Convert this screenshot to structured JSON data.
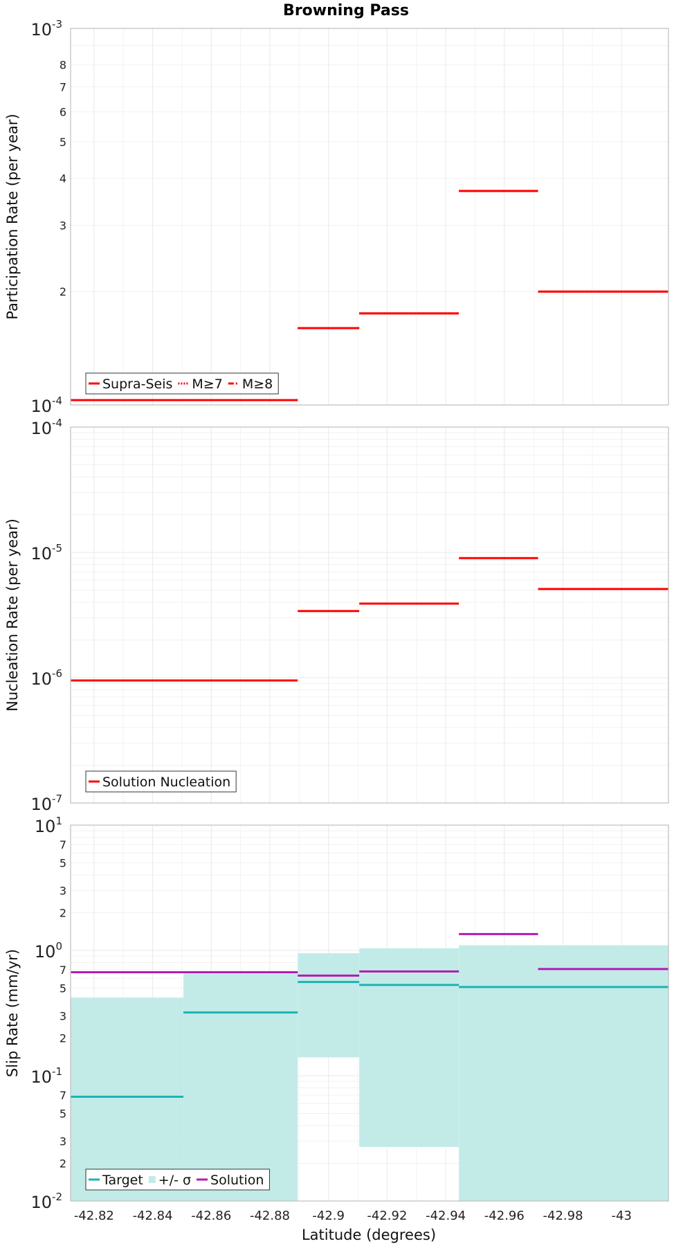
{
  "colors": {
    "red": "#ff0000",
    "teal": "#1ab3b3",
    "band": "#c2ebe8",
    "magenta": "#b31ab3",
    "grid": "#e8e8e8",
    "frame": "#bdbdbd"
  },
  "chart_data": {
    "type": "line",
    "title": "Browning Pass",
    "xlabel": "Latitude (degrees)",
    "xlim": [
      -42.812,
      -43.016
    ],
    "xticks": [
      -42.82,
      -42.84,
      -42.86,
      -42.88,
      -42.9,
      -42.92,
      -42.94,
      -42.96,
      -42.98,
      -43
    ],
    "xtick_labels": [
      "-42.82",
      "-42.84",
      "-42.86",
      "-42.88",
      "-42.9",
      "-42.92",
      "-42.94",
      "-42.96",
      "-42.98",
      "-43"
    ],
    "panels": [
      {
        "id": "participation",
        "ylabel": "Participation Rate (per year)",
        "yscale": "log",
        "ylim": [
          0.0001,
          0.001
        ],
        "major_ticks": [
          {
            "value": 0.0001,
            "base": "10",
            "exp": "-4"
          },
          {
            "value": 0.001,
            "base": "10",
            "exp": "-3"
          }
        ],
        "minor_ticks": [
          {
            "value": 0.0002,
            "label": "2"
          },
          {
            "value": 0.0003,
            "label": "3"
          },
          {
            "value": 0.0004,
            "label": "4"
          },
          {
            "value": 0.0005,
            "label": "5"
          },
          {
            "value": 0.0006,
            "label": "6"
          },
          {
            "value": 0.0007,
            "label": "7"
          },
          {
            "value": 0.0008,
            "label": "8"
          }
        ],
        "legend": {
          "position": "bottom-left",
          "entries": [
            {
              "name": "Supra-Seis",
              "style": "solid",
              "color": "#ff0000"
            },
            {
              "name": "M≥7",
              "style": "dotted",
              "color": "#ff0000"
            },
            {
              "name": "M≥8",
              "style": "dashdot",
              "color": "#ff0000"
            }
          ]
        },
        "series": [
          {
            "name": "Supra-Seis",
            "style": "solid",
            "color": "#ff0000",
            "segments": [
              {
                "x": [
                  -42.812,
                  -42.8505
                ],
                "y": 0.000103
              },
              {
                "x": [
                  -42.8505,
                  -42.8895
                ],
                "y": 0.000103
              },
              {
                "x": [
                  -42.8895,
                  -42.9105
                ],
                "y": 0.00016
              },
              {
                "x": [
                  -42.9105,
                  -42.9445
                ],
                "y": 0.000175
              },
              {
                "x": [
                  -42.9445,
                  -42.9715
                ],
                "y": 0.00037
              },
              {
                "x": [
                  -42.9715,
                  -43.016
                ],
                "y": 0.0002
              }
            ]
          },
          {
            "name": "M≥7",
            "style": "dotted",
            "color": "#ff0000",
            "segments": [
              {
                "x": [
                  -42.812,
                  -42.8505
                ],
                "y": 0.000103
              },
              {
                "x": [
                  -42.8505,
                  -42.8895
                ],
                "y": 0.000103
              },
              {
                "x": [
                  -42.8895,
                  -42.9105
                ],
                "y": 0.00016
              },
              {
                "x": [
                  -42.9105,
                  -42.9445
                ],
                "y": 0.000175
              },
              {
                "x": [
                  -42.9445,
                  -42.9715
                ],
                "y": 0.00037
              },
              {
                "x": [
                  -42.9715,
                  -43.016
                ],
                "y": 0.0002
              }
            ]
          }
        ]
      },
      {
        "id": "nucleation",
        "ylabel": "Nucleation Rate (per year)",
        "yscale": "log",
        "ylim": [
          1e-07,
          0.0001
        ],
        "major_ticks": [
          {
            "value": 1e-07,
            "base": "10",
            "exp": "-7"
          },
          {
            "value": 1e-06,
            "base": "10",
            "exp": "-6"
          },
          {
            "value": 1e-05,
            "base": "10",
            "exp": "-5"
          },
          {
            "value": 0.0001,
            "base": "10",
            "exp": "-4"
          }
        ],
        "minor_ticks": [],
        "legend": {
          "position": "bottom-left",
          "entries": [
            {
              "name": "Solution Nucleation",
              "style": "solid",
              "color": "#ff0000"
            }
          ]
        },
        "series": [
          {
            "name": "Solution Nucleation",
            "style": "solid",
            "color": "#ff0000",
            "segments": [
              {
                "x": [
                  -42.812,
                  -42.8505
                ],
                "y": 9.5e-07
              },
              {
                "x": [
                  -42.8505,
                  -42.8895
                ],
                "y": 9.5e-07
              },
              {
                "x": [
                  -42.8895,
                  -42.9105
                ],
                "y": 3.4e-06
              },
              {
                "x": [
                  -42.9105,
                  -42.9445
                ],
                "y": 3.9e-06
              },
              {
                "x": [
                  -42.9445,
                  -42.9715
                ],
                "y": 9e-06
              },
              {
                "x": [
                  -42.9715,
                  -43.016
                ],
                "y": 5.1e-06
              }
            ]
          }
        ]
      },
      {
        "id": "slip",
        "ylabel": "Slip Rate (mm/yr)",
        "yscale": "log",
        "ylim": [
          0.01,
          10
        ],
        "major_ticks": [
          {
            "value": 0.01,
            "base": "10",
            "exp": "-2"
          },
          {
            "value": 0.1,
            "base": "10",
            "exp": "-1"
          },
          {
            "value": 1,
            "base": "10",
            "exp": "0"
          },
          {
            "value": 10,
            "base": "10",
            "exp": "1"
          }
        ],
        "minor_ticks": [
          {
            "value": 0.02,
            "label": "2"
          },
          {
            "value": 0.03,
            "label": "3"
          },
          {
            "value": 0.05,
            "label": "5"
          },
          {
            "value": 0.07,
            "label": "7"
          },
          {
            "value": 0.2,
            "label": "2"
          },
          {
            "value": 0.3,
            "label": "3"
          },
          {
            "value": 0.5,
            "label": "5"
          },
          {
            "value": 0.7,
            "label": "7"
          },
          {
            "value": 2,
            "label": "2"
          },
          {
            "value": 3,
            "label": "3"
          },
          {
            "value": 5,
            "label": "5"
          },
          {
            "value": 7,
            "label": "7"
          }
        ],
        "legend": {
          "position": "bottom-left",
          "entries": [
            {
              "name": "Target",
              "style": "solid",
              "color": "#1ab3b3"
            },
            {
              "name": "+/- σ",
              "style": "band",
              "color": "#c2ebe8"
            },
            {
              "name": "Solution",
              "style": "solid",
              "color": "#b31ab3"
            }
          ]
        },
        "bands": [
          {
            "x": [
              -42.812,
              -42.8505
            ],
            "low": 0.01,
            "high": 0.42
          },
          {
            "x": [
              -42.8505,
              -42.8895
            ],
            "low": 0.01,
            "high": 0.68
          },
          {
            "x": [
              -42.8895,
              -42.9105
            ],
            "low": 0.14,
            "high": 0.95
          },
          {
            "x": [
              -42.9105,
              -42.9445
            ],
            "low": 0.027,
            "high": 1.04
          },
          {
            "x": [
              -42.9445,
              -42.9715
            ],
            "low": 0.01,
            "high": 1.1
          },
          {
            "x": [
              -42.9715,
              -43.016
            ],
            "low": 0.01,
            "high": 1.1
          }
        ],
        "series": [
          {
            "name": "Target",
            "style": "solid",
            "color": "#1ab3b3",
            "segments": [
              {
                "x": [
                  -42.812,
                  -42.8505
                ],
                "y": 0.068
              },
              {
                "x": [
                  -42.8505,
                  -42.8895
                ],
                "y": 0.32
              },
              {
                "x": [
                  -42.8895,
                  -42.9105
                ],
                "y": 0.56
              },
              {
                "x": [
                  -42.9105,
                  -42.9445
                ],
                "y": 0.53
              },
              {
                "x": [
                  -42.9445,
                  -42.9715
                ],
                "y": 0.51
              },
              {
                "x": [
                  -42.9715,
                  -43.016
                ],
                "y": 0.51
              }
            ]
          },
          {
            "name": "Solution",
            "style": "solid",
            "color": "#b31ab3",
            "segments": [
              {
                "x": [
                  -42.812,
                  -42.8505
                ],
                "y": 0.67
              },
              {
                "x": [
                  -42.8505,
                  -42.8895
                ],
                "y": 0.67
              },
              {
                "x": [
                  -42.8895,
                  -42.9105
                ],
                "y": 0.63
              },
              {
                "x": [
                  -42.9105,
                  -42.9445
                ],
                "y": 0.68
              },
              {
                "x": [
                  -42.9445,
                  -42.9715
                ],
                "y": 1.35
              },
              {
                "x": [
                  -42.9715,
                  -43.016
                ],
                "y": 0.71
              }
            ]
          }
        ]
      }
    ]
  }
}
